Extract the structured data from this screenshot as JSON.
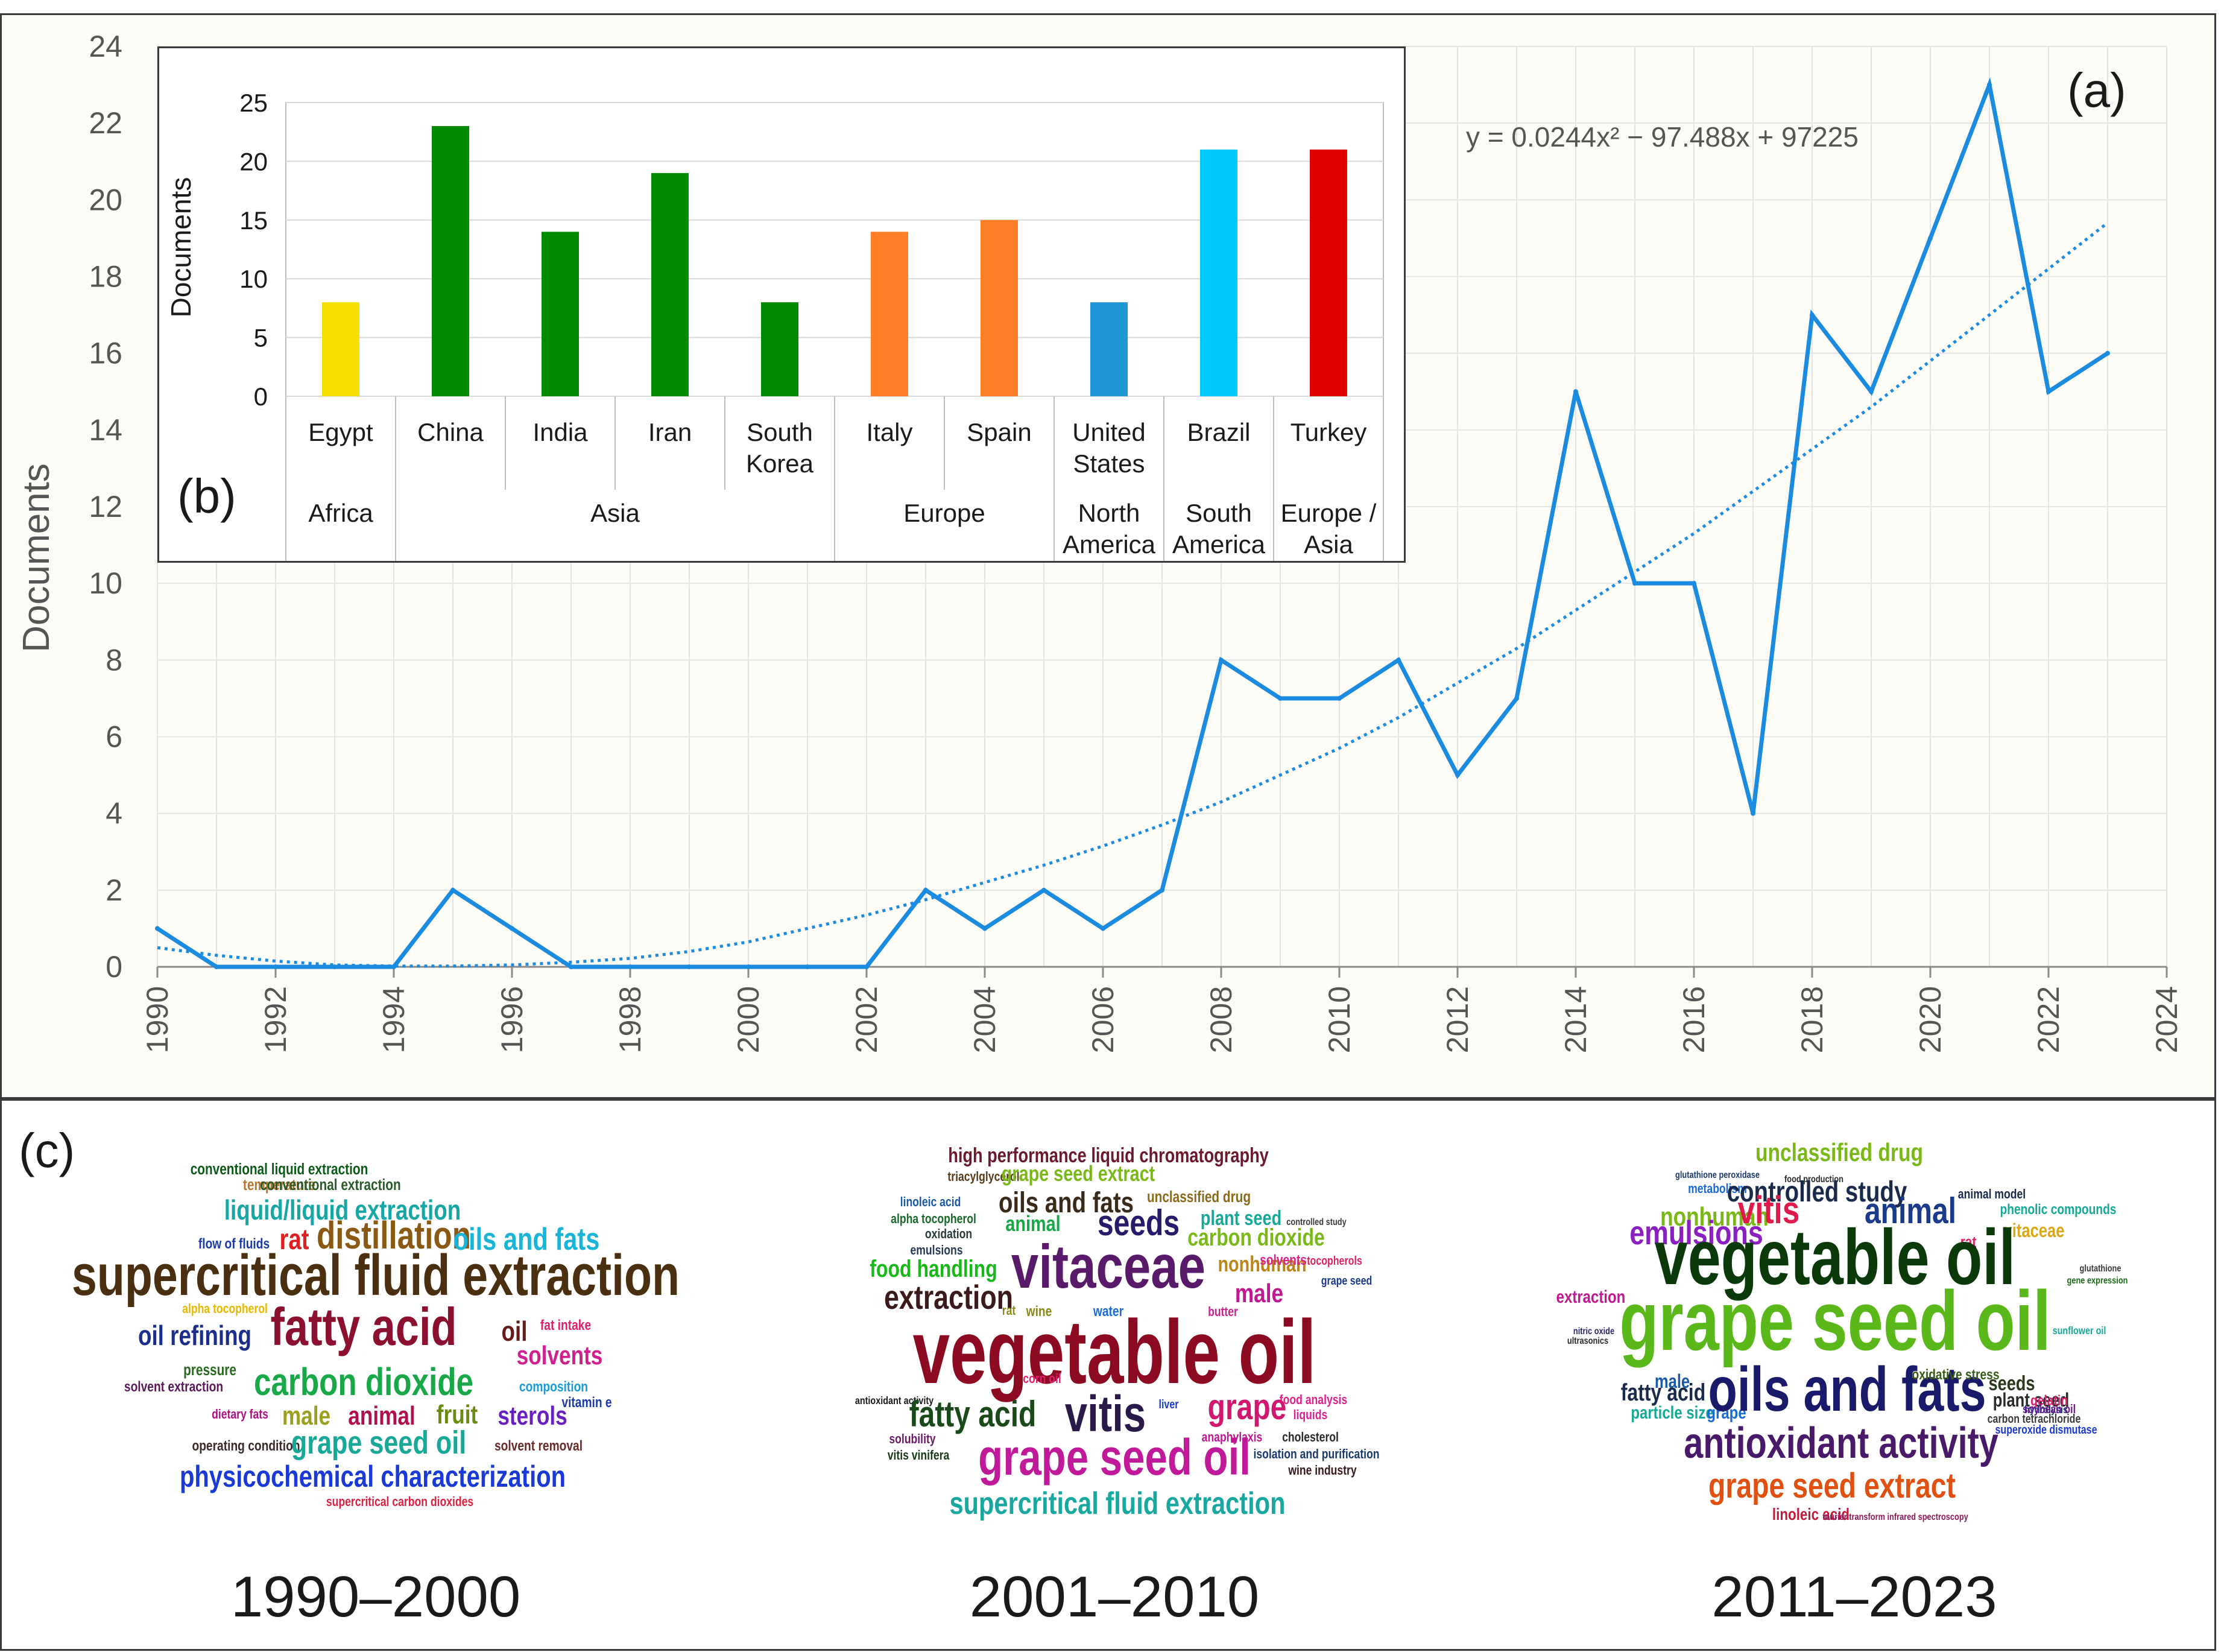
{
  "chart_data": [
    {
      "id": "a",
      "panel_label": "(a)",
      "type": "line",
      "ylabel": "Documents",
      "xlabel": "",
      "xlim": [
        1990,
        2024
      ],
      "ylim": [
        0,
        24
      ],
      "x_ticks": [
        "1990",
        "1992",
        "1994",
        "1996",
        "1998",
        "2000",
        "2002",
        "2004",
        "2006",
        "2008",
        "2010",
        "2012",
        "2014",
        "2016",
        "2018",
        "2020",
        "2022",
        "2024"
      ],
      "y_ticks": [
        "0",
        "2",
        "4",
        "6",
        "8",
        "10",
        "12",
        "14",
        "16",
        "18",
        "20",
        "22",
        "24"
      ],
      "x": [
        1990,
        1991,
        1992,
        1993,
        1994,
        1995,
        1996,
        1997,
        1998,
        1999,
        2000,
        2001,
        2002,
        2003,
        2004,
        2005,
        2006,
        2007,
        2008,
        2009,
        2010,
        2011,
        2012,
        2013,
        2014,
        2015,
        2016,
        2017,
        2018,
        2019,
        2020,
        2021,
        2022,
        2023
      ],
      "values": [
        1,
        0,
        0,
        0,
        0,
        2,
        1,
        0,
        0,
        0,
        0,
        0,
        0,
        2,
        1,
        2,
        1,
        2,
        8,
        7,
        7,
        8,
        5,
        7,
        15,
        10,
        10,
        4,
        17,
        15,
        19,
        23,
        15,
        16
      ],
      "trend_formula": "y = 0.0244x² − 97.488x + 97225",
      "trend_coefficients": [
        0.0244,
        -97.488,
        97225
      ],
      "trend_values": [
        0.5,
        0.3,
        0.15,
        0.05,
        0.02,
        0.02,
        0.05,
        0.12,
        0.22,
        0.4,
        0.65,
        1.0,
        1.35,
        1.75,
        2.2,
        2.65,
        3.15,
        3.7,
        4.3,
        5.0,
        5.7,
        6.5,
        7.4,
        8.3,
        9.3,
        10.3,
        11.3,
        12.4,
        13.5,
        14.6,
        15.8,
        17.0,
        18.2,
        19.4
      ],
      "line_color": "#1b8be0"
    },
    {
      "id": "b",
      "panel_label": "(b)",
      "type": "bar",
      "ylabel": "Documents",
      "ylim": [
        0,
        25
      ],
      "y_ticks": [
        "0",
        "5",
        "10",
        "15",
        "20",
        "25"
      ],
      "categories": [
        {
          "name": "Egypt",
          "value": 8,
          "color": "#f5e000"
        },
        {
          "name": "China",
          "value": 23,
          "color": "#008a00"
        },
        {
          "name": "India",
          "value": 14,
          "color": "#008a00"
        },
        {
          "name": "Iran",
          "value": 19,
          "color": "#008a00"
        },
        {
          "name": "South Korea",
          "value": 8,
          "color": "#008a00"
        },
        {
          "name": "Italy",
          "value": 14,
          "color": "#ff7f27"
        },
        {
          "name": "Spain",
          "value": 15,
          "color": "#ff7f27"
        },
        {
          "name": "United States",
          "value": 8,
          "color": "#1f97d6"
        },
        {
          "name": "Brazil",
          "value": 21,
          "color": "#00c8ff"
        },
        {
          "name": "Turkey",
          "value": 21,
          "color": "#e00000"
        }
      ],
      "category_lines": [
        [
          "Egypt"
        ],
        [
          "China"
        ],
        [
          "India"
        ],
        [
          "Iran"
        ],
        [
          "South",
          "Korea"
        ],
        [
          "Italy"
        ],
        [
          "Spain"
        ],
        [
          "United",
          "States"
        ],
        [
          "Brazil"
        ],
        [
          "Turkey"
        ]
      ],
      "groups": [
        {
          "name": "Africa",
          "lines": [
            "Africa"
          ],
          "count": 1
        },
        {
          "name": "Asia",
          "lines": [
            "Asia"
          ],
          "count": 4
        },
        {
          "name": "Europe",
          "lines": [
            "Europe"
          ],
          "count": 2
        },
        {
          "name": "North America",
          "lines": [
            "North",
            "America"
          ],
          "count": 1
        },
        {
          "name": "South America",
          "lines": [
            "South",
            "America"
          ],
          "count": 1
        },
        {
          "name": "Europe / Asia",
          "lines": [
            "Europe /",
            "Asia"
          ],
          "count": 1
        }
      ]
    }
  ],
  "wordclouds": {
    "panel_label": "(c)",
    "clouds": [
      {
        "period": "1990–2000",
        "words": [
          {
            "text": "conventional liquid extraction",
            "color": "#0c5a18"
          },
          {
            "text": "temperature",
            "color": "#b8762c"
          },
          {
            "text": "conventional extraction",
            "color": "#2a5a2a"
          },
          {
            "text": "liquid/liquid extraction",
            "color": "#16a6a6"
          },
          {
            "text": "flow of fluids",
            "color": "#1b3aa8"
          },
          {
            "text": "rat",
            "color": "#e02020"
          },
          {
            "text": "distillation",
            "color": "#8a5a14"
          },
          {
            "text": "oils and fats",
            "color": "#19b5d8"
          },
          {
            "text": "supercritical fluid extraction",
            "color": "#4a3010"
          },
          {
            "text": "alpha tocopherol",
            "color": "#e6b800"
          },
          {
            "text": "oil refining",
            "color": "#1b2f8a"
          },
          {
            "text": "fatty acid",
            "color": "#8c1030"
          },
          {
            "text": "oil",
            "color": "#6a1a1a"
          },
          {
            "text": "fat intake",
            "color": "#e0206a"
          },
          {
            "text": "solvents",
            "color": "#d02090"
          },
          {
            "text": "pressure",
            "color": "#2a6a20"
          },
          {
            "text": "solvent extraction",
            "color": "#5a1a5a"
          },
          {
            "text": "carbon dioxide",
            "color": "#18a848"
          },
          {
            "text": "composition",
            "color": "#1a9ad8"
          },
          {
            "text": "vitamin e",
            "color": "#1b3aa8"
          },
          {
            "text": "dietary fats",
            "color": "#b01080"
          },
          {
            "text": "male",
            "color": "#9aa020"
          },
          {
            "text": "animal",
            "color": "#b01050"
          },
          {
            "text": "fruit",
            "color": "#6a8a10"
          },
          {
            "text": "sterols",
            "color": "#6a20c0"
          },
          {
            "text": "operating condition",
            "color": "#3a2a2a"
          },
          {
            "text": "grape seed oil",
            "color": "#18a898"
          },
          {
            "text": "solvent removal",
            "color": "#6a2a2a"
          },
          {
            "text": "physicochemical characterization",
            "color": "#1a3ad8"
          },
          {
            "text": "supercritical carbon dioxides",
            "color": "#e02040"
          }
        ]
      },
      {
        "period": "2001–2010",
        "words": [
          {
            "text": "high performance liquid chromatography",
            "color": "#6a1a2a"
          },
          {
            "text": "triacylglycerol",
            "color": "#5a3a1a"
          },
          {
            "text": "grape seed extract",
            "color": "#7ab818"
          },
          {
            "text": "linoleic acid",
            "color": "#1a5aa8"
          },
          {
            "text": "oils and fats",
            "color": "#3a2a1a"
          },
          {
            "text": "unclassified drug",
            "color": "#8a6a1a"
          },
          {
            "text": "alpha tocopherol",
            "color": "#1a6a2a"
          },
          {
            "text": "animal",
            "color": "#18a848"
          },
          {
            "text": "seeds",
            "color": "#2a1a6a"
          },
          {
            "text": "plant seed",
            "color": "#18a898"
          },
          {
            "text": "controlled study",
            "color": "#3a3a3a"
          },
          {
            "text": "oxidation",
            "color": "#2a3a3a"
          },
          {
            "text": "carbon dioxide",
            "color": "#7ab818"
          },
          {
            "text": "emulsions",
            "color": "#2a3a5a"
          },
          {
            "text": "food handling",
            "color": "#18b818"
          },
          {
            "text": "vitaceae",
            "color": "#5a1a6a"
          },
          {
            "text": "nonhuman",
            "color": "#b8861a"
          },
          {
            "text": "solvents",
            "color": "#e02090"
          },
          {
            "text": "tocopherols",
            "color": "#e02060"
          },
          {
            "text": "grape seed",
            "color": "#1a3a8a"
          },
          {
            "text": "extraction",
            "color": "#3a1a1a"
          },
          {
            "text": "male",
            "color": "#c01890"
          },
          {
            "text": "rat",
            "color": "#8a8a1a"
          },
          {
            "text": "wine",
            "color": "#8a8a1a"
          },
          {
            "text": "water",
            "color": "#1a6ad8"
          },
          {
            "text": "butter",
            "color": "#d02090"
          },
          {
            "text": "vegetable oil",
            "color": "#8c0a22"
          },
          {
            "text": "corn oil",
            "color": "#e02070"
          },
          {
            "text": "food analysis",
            "color": "#e0208a"
          },
          {
            "text": "antioxidant activity",
            "color": "#1a1a1a"
          },
          {
            "text": "liver",
            "color": "#1a3ad8"
          },
          {
            "text": "fatty acid",
            "color": "#1a4a1a"
          },
          {
            "text": "vitis",
            "color": "#2a1a4a"
          },
          {
            "text": "grape",
            "color": "#d01870"
          },
          {
            "text": "liquids",
            "color": "#e02090"
          },
          {
            "text": "anaphylaxis",
            "color": "#c01890"
          },
          {
            "text": "cholesterol",
            "color": "#2a2a2a"
          },
          {
            "text": "solubility",
            "color": "#6a1a6a"
          },
          {
            "text": "isolation and purification",
            "color": "#1a3a6a"
          },
          {
            "text": "vitis vinifera",
            "color": "#1a3a1a"
          },
          {
            "text": "grape seed oil",
            "color": "#c01a9a"
          },
          {
            "text": "wine industry",
            "color": "#3a1a1a"
          },
          {
            "text": "supercritical fluid extraction",
            "color": "#18a8a0"
          }
        ]
      },
      {
        "period": "2011–2023",
        "words": [
          {
            "text": "unclassified drug",
            "color": "#7ab818"
          },
          {
            "text": "glutathione peroxidase",
            "color": "#1a3a6a"
          },
          {
            "text": "food production",
            "color": "#2a2a2a"
          },
          {
            "text": "metabolism",
            "color": "#1a6ad8"
          },
          {
            "text": "controlled study",
            "color": "#1a2a4a"
          },
          {
            "text": "animal model",
            "color": "#1a2a4a"
          },
          {
            "text": "nonhuman",
            "color": "#7ab818"
          },
          {
            "text": "vitis",
            "color": "#e01a4a"
          },
          {
            "text": "animal",
            "color": "#1a3a8a"
          },
          {
            "text": "phenolic compounds",
            "color": "#18a898"
          },
          {
            "text": "emulsions",
            "color": "#8a20c0"
          },
          {
            "text": "vitaceae",
            "color": "#d8a818"
          },
          {
            "text": "rat",
            "color": "#e02060"
          },
          {
            "text": "vegetable oil",
            "color": "#0a3a0a"
          },
          {
            "text": "glutathione",
            "color": "#3a3a3a"
          },
          {
            "text": "gene expression",
            "color": "#1a6a1a"
          },
          {
            "text": "extraction",
            "color": "#c01890"
          },
          {
            "text": "grape seed oil",
            "color": "#5ab81a"
          },
          {
            "text": "sunflower oil",
            "color": "#18a898"
          },
          {
            "text": "nitric oxide",
            "color": "#2a2a6a"
          },
          {
            "text": "ultrasonics",
            "color": "#2a2a2a"
          },
          {
            "text": "male",
            "color": "#1a5aa8"
          },
          {
            "text": "fatty acid",
            "color": "#1a2a4a"
          },
          {
            "text": "particle size",
            "color": "#18a898"
          },
          {
            "text": "grape",
            "color": "#1a6ad8"
          },
          {
            "text": "oils and fats",
            "color": "#1a1a6a"
          },
          {
            "text": "seeds",
            "color": "#2a3a1a"
          },
          {
            "text": "plant seed",
            "color": "#2a2a2a"
          },
          {
            "text": "carbon tetrachloride",
            "color": "#3a3a3a"
          },
          {
            "text": "antioxidant activity",
            "color": "#4a1a6a"
          },
          {
            "text": "grape seed extract",
            "color": "#e05010"
          },
          {
            "text": "linoleic acid",
            "color": "#c01a3a"
          },
          {
            "text": "oxidative stress",
            "color": "#3a5a1a"
          },
          {
            "text": "gelatin",
            "color": "#e02070"
          },
          {
            "text": "hydrolysis",
            "color": "#1a3a8a"
          },
          {
            "text": "soybean oil",
            "color": "#6a1a8a"
          },
          {
            "text": "superoxide dismutase",
            "color": "#1a3ad8"
          },
          {
            "text": "fourier transform infrared spectroscopy",
            "color": "#8a1a5a"
          }
        ]
      }
    ]
  }
}
